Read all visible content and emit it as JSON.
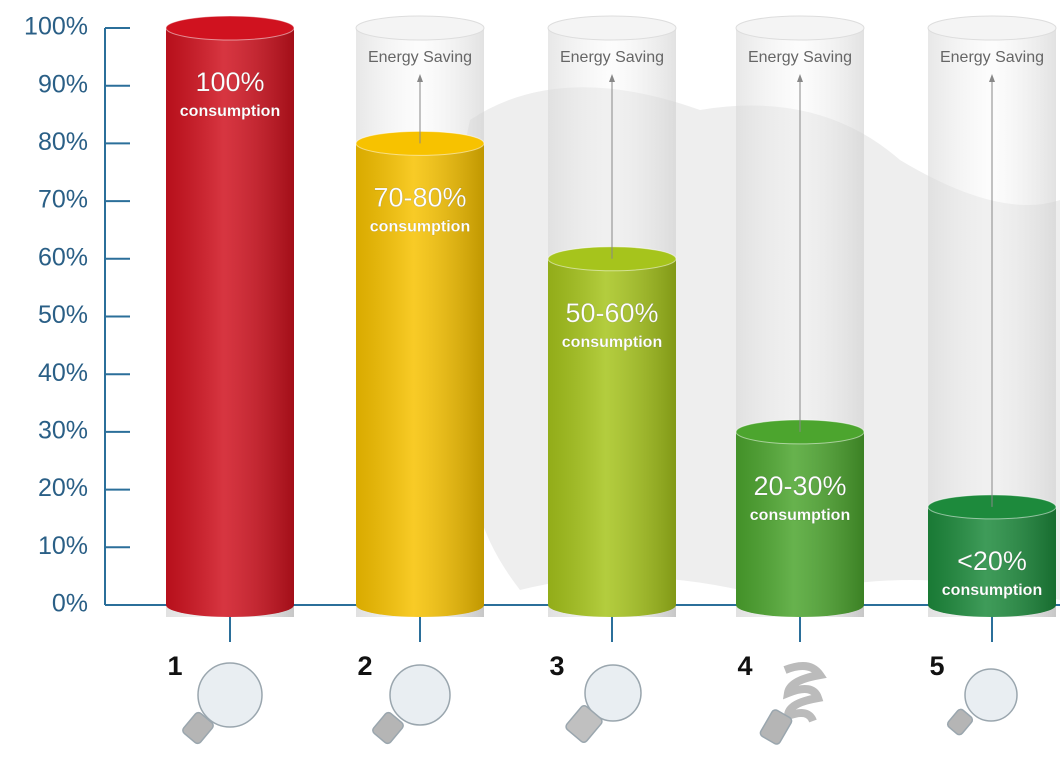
{
  "chart_data": {
    "type": "bar",
    "categories": [
      "1",
      "2",
      "3",
      "4",
      "5"
    ],
    "values": [
      100,
      80,
      60,
      30,
      17
    ],
    "value_labels": [
      "100%",
      "70-80%",
      "50-60%",
      "20-30%",
      "<20%"
    ],
    "label_note": "consumption",
    "annotation": "Energy Saving",
    "colors": [
      "#d0121f",
      "#f7c200",
      "#a6c41c",
      "#4ca52e",
      "#1d8a3c"
    ],
    "ylim": [
      0,
      100
    ],
    "yticks": [
      {
        "value": 0,
        "label": "0%"
      },
      {
        "value": 10,
        "label": "10%"
      },
      {
        "value": 20,
        "label": "20%"
      },
      {
        "value": 30,
        "label": "30%"
      },
      {
        "value": 40,
        "label": "40%"
      },
      {
        "value": 50,
        "label": "50%"
      },
      {
        "value": 60,
        "label": "60%"
      },
      {
        "value": 70,
        "label": "70%"
      },
      {
        "value": 80,
        "label": "80%"
      },
      {
        "value": 90,
        "label": "90%"
      },
      {
        "value": 100,
        "label": "100%"
      }
    ]
  }
}
